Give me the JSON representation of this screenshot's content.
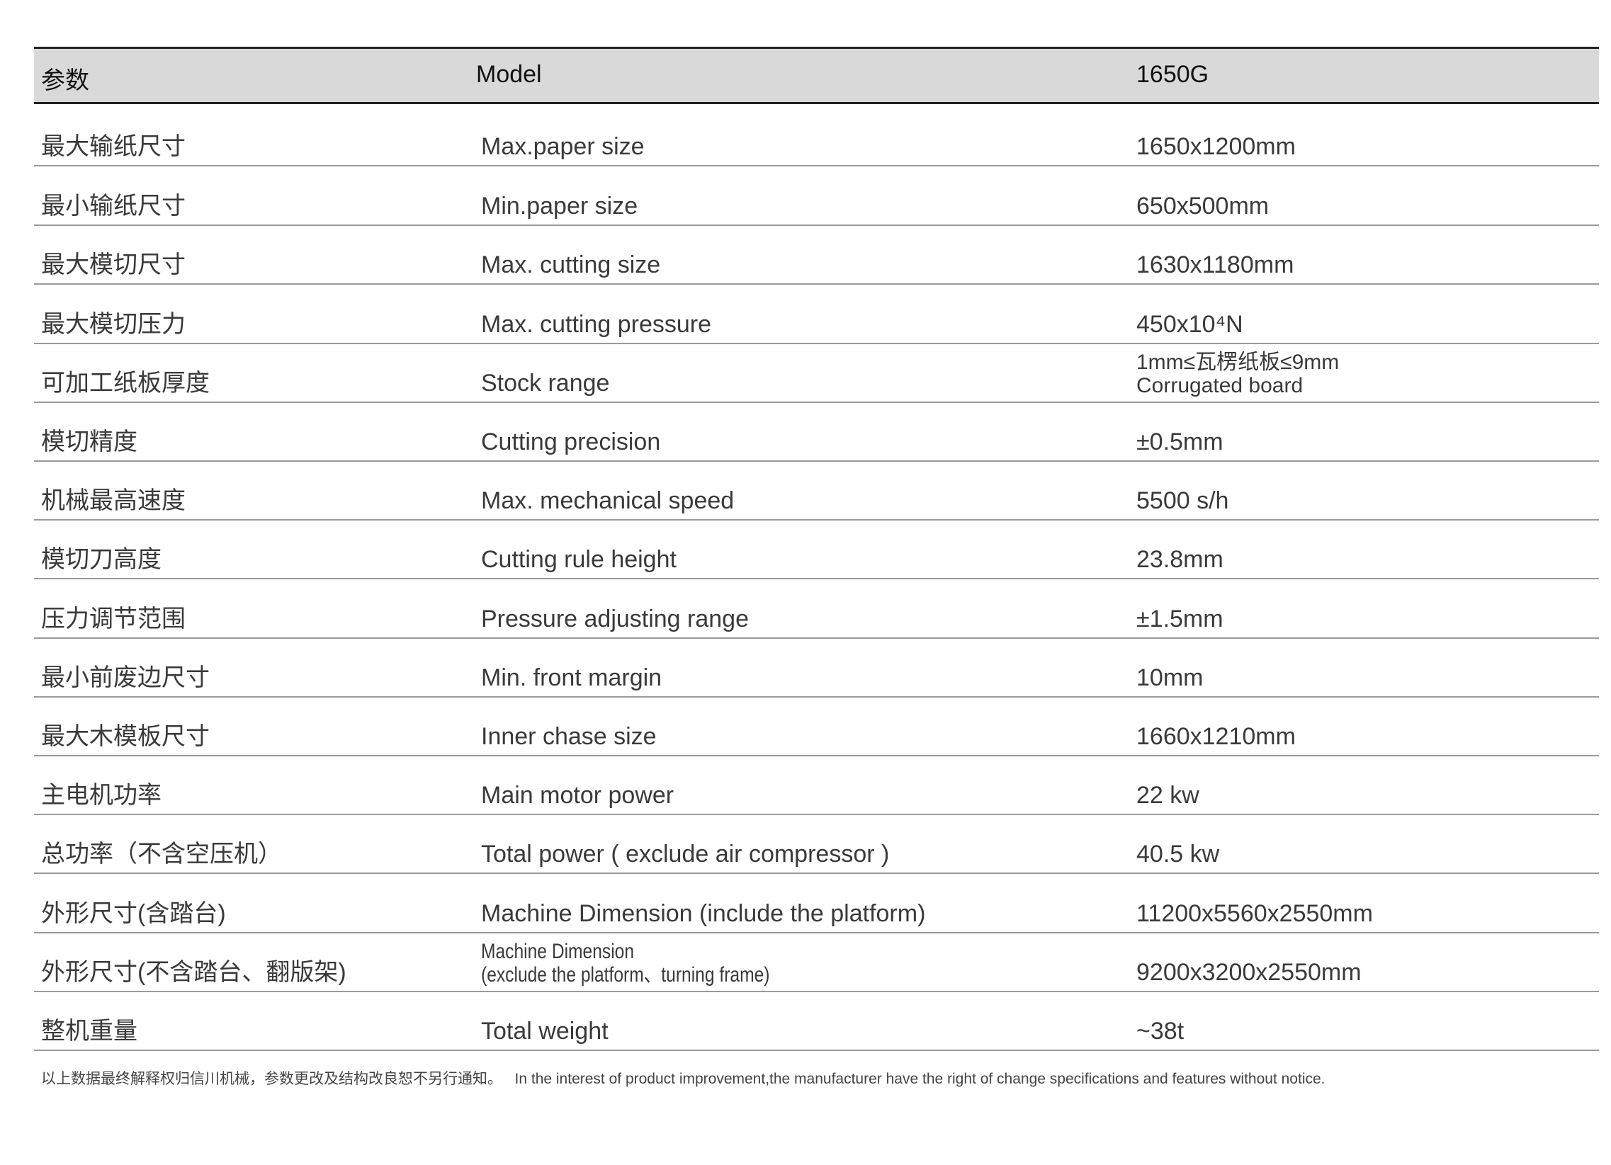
{
  "header": {
    "param": "参数",
    "model": "Model",
    "value": "1650G"
  },
  "rows": [
    {
      "cn": "最大输纸尺寸",
      "en": "Max.paper size",
      "value": "1650x1200mm"
    },
    {
      "cn": "最小输纸尺寸",
      "en": "Min.paper size",
      "value": "650x500mm"
    },
    {
      "cn": "最大模切尺寸",
      "en": "Max. cutting size",
      "value": "1630x1180mm"
    },
    {
      "cn": "最大模切压力",
      "en": "Max. cutting pressure",
      "value": "450x10⁴N"
    },
    {
      "cn": "可加工纸板厚度",
      "en": "Stock range",
      "value": "1mm≤瓦楞纸板≤9mm",
      "value2": "Corrugated board"
    },
    {
      "cn": "模切精度",
      "en": "Cutting precision",
      "value": "±0.5mm"
    },
    {
      "cn": "机械最高速度",
      "en": "Max. mechanical speed",
      "value": "5500 s/h"
    },
    {
      "cn": "模切刀高度",
      "en": "Cutting rule height",
      "value": "23.8mm"
    },
    {
      "cn": "压力调节范围",
      "en": "Pressure adjusting range",
      "value": "±1.5mm"
    },
    {
      "cn": "最小前废边尺寸",
      "en": "Min. front margin",
      "value": "10mm"
    },
    {
      "cn": "最大木模板尺寸",
      "en": "Inner chase size",
      "value": "1660x1210mm"
    },
    {
      "cn": "主电机功率",
      "en": "Main motor power",
      "value": "22 kw"
    },
    {
      "cn": "总功率（不含空压机）",
      "en": "Total power ( exclude air compressor )",
      "value": "40.5 kw"
    },
    {
      "cn": "外形尺寸(含踏台)",
      "en": "Machine Dimension (include the platform)",
      "value": "11200x5560x2550mm"
    },
    {
      "cn": "外形尺寸(不含踏台、翻版架)",
      "en": "Machine Dimension",
      "en2": "(exclude the platform、turning frame)",
      "value": "9200x3200x2550mm"
    },
    {
      "cn": "整机重量",
      "en": "Total weight",
      "value": "~38t"
    }
  ],
  "footer": {
    "cn": "以上数据最终解释权归信川机械，参数更改及结构改良恕不另行通知。",
    "en": "In the interest of product improvement,the manufacturer have the right of change specifications and features without notice."
  }
}
